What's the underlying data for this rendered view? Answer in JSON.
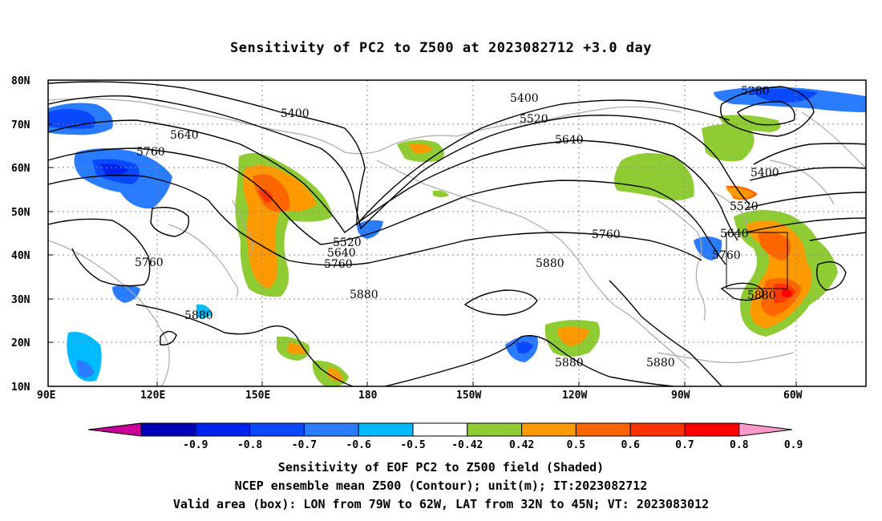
{
  "title": "Sensitivity of PC2 to Z500 at 2023082712 +3.0 day",
  "lat_labels": [
    "80N",
    "70N",
    "60N",
    "50N",
    "40N",
    "30N",
    "20N",
    "10N"
  ],
  "lon_labels": [
    "90E",
    "120E",
    "150E",
    "180",
    "150W",
    "120W",
    "90W",
    "60W"
  ],
  "contour_labels": {
    "c5280": "5280",
    "c5400a": "5400",
    "c5400b": "5400",
    "c5400c": "5400",
    "c5520a": "5520",
    "c5520b": "5520",
    "c5520c": "5520",
    "c5640a": "5640",
    "c5640b": "5640",
    "c5640c": "5640",
    "c5640d": "5640",
    "c5760a": "5760",
    "c5760b": "5760",
    "c5760c": "5760",
    "c5760d": "5760",
    "c5760e": "5760",
    "c5880a": "5880",
    "c5880b": "5880",
    "c5880c": "5880",
    "c5880d": "5880",
    "c5880e": "5880",
    "c5880f": "5880"
  },
  "colorbar": {
    "labels": [
      "-0.9",
      "-0.8",
      "-0.7",
      "-0.6",
      "-0.5",
      "-0.42",
      "0.42",
      "0.5",
      "0.6",
      "0.7",
      "0.8",
      "0.9"
    ],
    "colors": [
      "#cc0099",
      "#0000b4",
      "#0022ee",
      "#0a48ff",
      "#2a7cff",
      "#00bbff",
      "#ffffff",
      "#8fcc33",
      "#ff9900",
      "#ff6600",
      "#ff3300",
      "#ff0000",
      "#ff99cc"
    ]
  },
  "captions": {
    "line1": "Sensitivity of EOF PC2 to Z500 field (Shaded)",
    "line2": "NCEP ensemble mean Z500 (Contour); unit(m); IT:2023082712",
    "line3": "Valid area (box): LON from 79W to 62W, LAT from 32N to 45N; VT: 2023083012"
  }
}
